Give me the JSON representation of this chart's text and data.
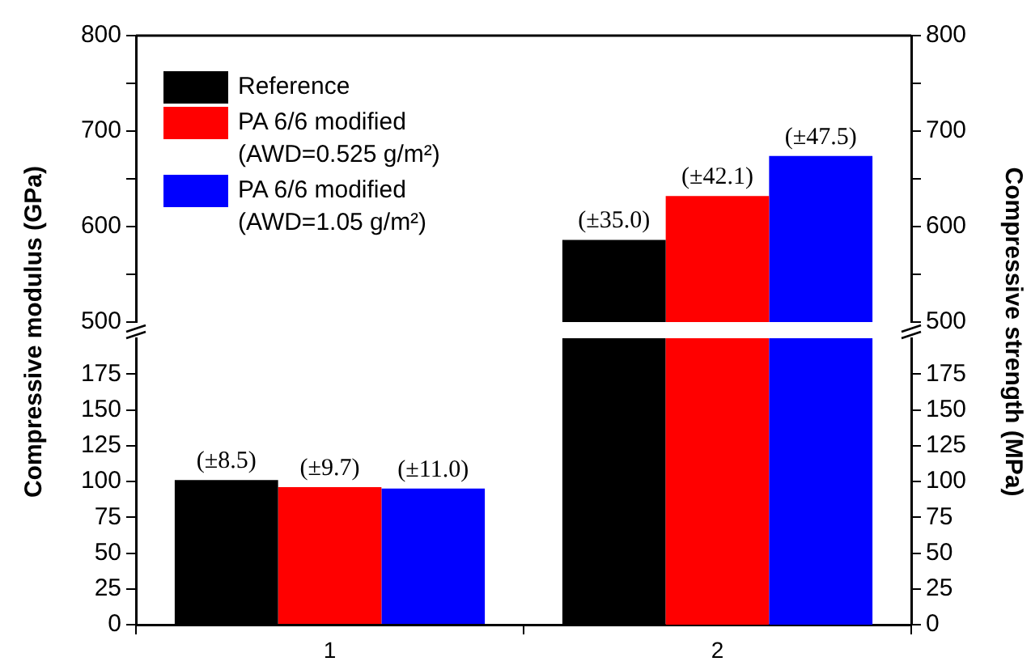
{
  "chart_data": [
    {
      "type": "bar",
      "categories": [
        "1",
        "2"
      ],
      "ylabel": "Compressive modulus (GPa)",
      "y2label": "Compressive strength (MPa)",
      "series": [
        {
          "name": "Reference",
          "color": "#000000",
          "values": [
            null,
            586
          ]
        },
        {
          "name": "PA 6/6 modified (AWD=0.525 g/m²)",
          "color": "#ff0000",
          "values": [
            null,
            632
          ]
        },
        {
          "name": "PA 6/6 modified (AWD=1.05 g/m²)",
          "color": "#0000ff",
          "values": [
            null,
            674
          ]
        }
      ],
      "annotations": [
        "(±35.0)",
        "(±42.1)",
        "(±47.5)"
      ],
      "ylim": [
        500,
        800
      ],
      "yticks": [
        500,
        {
          "value": 550,
          "label": null
        },
        600,
        {
          "value": 650,
          "label": null
        },
        700,
        {
          "value": 750,
          "label": null
        },
        800
      ],
      "y2lim": [
        500,
        800
      ],
      "y2ticks": [
        500,
        {
          "value": 550,
          "label": null
        },
        600,
        {
          "value": 650,
          "label": null
        },
        700,
        {
          "value": 750,
          "label": null
        },
        800
      ],
      "tick_labels": "y",
      "legend": "top left"
    },
    {
      "type": "bar",
      "categories": [
        "1",
        "2"
      ],
      "series": [
        {
          "color": "#000000",
          "values": [
            101,
            null
          ]
        },
        {
          "color": "#ff0000",
          "values": [
            96,
            null
          ]
        },
        {
          "color": "#0000ff",
          "values": [
            95,
            null
          ]
        }
      ],
      "annotations": [
        "(±8.5)",
        "(±9.7)",
        "(±11.0)"
      ],
      "ylim": [
        0,
        200
      ],
      "yticks": [
        0,
        25,
        50,
        75,
        100,
        125,
        150,
        175
      ],
      "y2lim": [
        0,
        200
      ],
      "y2ticks": [
        0,
        25,
        50,
        75,
        100,
        125,
        150,
        175
      ]
    }
  ]
}
